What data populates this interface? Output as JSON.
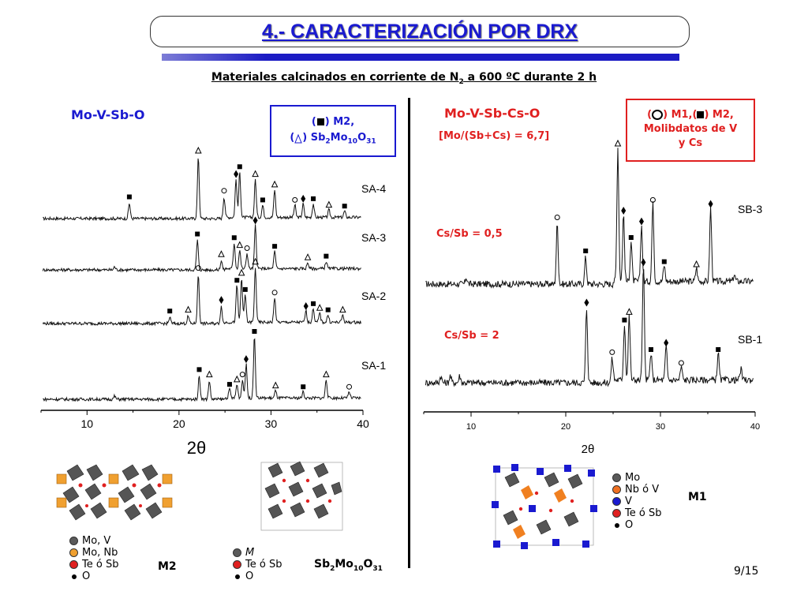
{
  "title": "4.- CARACTERIZACIÓN POR DRX",
  "subtitle_prefix": "Materiales calcinados en corriente de N",
  "subtitle_sub": "2",
  "subtitle_suffix": " a 600 ºC durante 2 h",
  "left_panel": {
    "heading": "Mo-V-Sb-O",
    "legend_m2": ") M2,",
    "legend_sb_open": "(",
    "legend_sb_formula": ") Sb",
    "legend_sb_sub1": "2",
    "legend_sb_mo": "Mo",
    "legend_sb_sub2": "10",
    "legend_sb_o": "O",
    "legend_sb_sub3": "31",
    "legend_m2_open": "("
  },
  "right_panel": {
    "heading": "Mo-V-Sb-Cs-O",
    "ratio": "[Mo/(Sb+Cs) = 6,7]",
    "legend_line1_a": "(",
    "legend_line1_b": ") M1,(",
    "legend_line1_c": ") M2,",
    "legend_line2": "Molibdatos de V",
    "legend_line3": "y Cs",
    "label_05": "Cs/Sb = 0,5",
    "label_2": "Cs/Sb = 2"
  },
  "chart_data": [
    {
      "type": "line",
      "title": "Mo-V-Sb-O",
      "xlabel": "2θ",
      "ylabel": "",
      "xlim": [
        5,
        40
      ],
      "x_ticks": [
        "10",
        "20",
        "30",
        "40"
      ],
      "series": [
        {
          "name": "SA-4",
          "peaks": [
            [
              14.6,
              0.25
            ],
            [
              22.1,
              1.0
            ],
            [
              24.9,
              0.35
            ],
            [
              26.2,
              0.62
            ],
            [
              26.6,
              0.74
            ],
            [
              28.3,
              0.62
            ],
            [
              29.1,
              0.2
            ],
            [
              30.4,
              0.45
            ],
            [
              32.6,
              0.2
            ],
            [
              33.5,
              0.22
            ],
            [
              34.6,
              0.22
            ],
            [
              36.3,
              0.12
            ],
            [
              38.0,
              0.1
            ]
          ]
        },
        {
          "name": "SA-3",
          "peaks": [
            [
              13.0,
              0.05
            ],
            [
              22.0,
              0.48
            ],
            [
              24.6,
              0.15
            ],
            [
              26.0,
              0.42
            ],
            [
              26.6,
              0.3
            ],
            [
              27.4,
              0.25
            ],
            [
              28.3,
              0.7
            ],
            [
              30.4,
              0.28
            ],
            [
              34.0,
              0.1
            ],
            [
              36.0,
              0.12
            ]
          ]
        },
        {
          "name": "SA-2",
          "peaks": [
            [
              19.0,
              0.1
            ],
            [
              21.0,
              0.12
            ],
            [
              22.1,
              0.8
            ],
            [
              24.6,
              0.28
            ],
            [
              26.3,
              0.6
            ],
            [
              26.8,
              0.72
            ],
            [
              27.2,
              0.45
            ],
            [
              28.3,
              0.9
            ],
            [
              30.4,
              0.4
            ],
            [
              33.8,
              0.18
            ],
            [
              34.6,
              0.22
            ],
            [
              35.3,
              0.15
            ],
            [
              36.2,
              0.12
            ],
            [
              37.8,
              0.12
            ]
          ]
        },
        {
          "name": "SA-1",
          "peaks": [
            [
              13.0,
              0.05
            ],
            [
              22.2,
              0.38
            ],
            [
              23.3,
              0.3
            ],
            [
              25.5,
              0.14
            ],
            [
              26.3,
              0.22
            ],
            [
              26.9,
              0.3
            ],
            [
              27.3,
              0.55
            ],
            [
              28.2,
              1.0
            ],
            [
              30.5,
              0.12
            ],
            [
              33.5,
              0.1
            ],
            [
              36.0,
              0.3
            ],
            [
              38.5,
              0.1
            ]
          ]
        }
      ]
    },
    {
      "type": "line",
      "title": "Mo-V-Sb-Cs-O",
      "xlabel": "2θ",
      "ylabel": "",
      "xlim": [
        5,
        40
      ],
      "x_ticks": [
        "10",
        "20",
        "30",
        "40"
      ],
      "series": [
        {
          "name": "SB-3",
          "peaks": [
            [
              9.5,
              0.05
            ],
            [
              19.1,
              0.45
            ],
            [
              22.1,
              0.2
            ],
            [
              25.5,
              1.0
            ],
            [
              26.1,
              0.5
            ],
            [
              26.9,
              0.3
            ],
            [
              28.0,
              0.42
            ],
            [
              29.2,
              0.58
            ],
            [
              30.4,
              0.12
            ],
            [
              33.8,
              0.1
            ],
            [
              35.3,
              0.55
            ],
            [
              37.8,
              0.05
            ]
          ]
        },
        {
          "name": "SB-1",
          "peaks": [
            [
              6.8,
              0.05
            ],
            [
              7.8,
              0.05
            ],
            [
              8.8,
              0.05
            ],
            [
              22.2,
              0.55
            ],
            [
              24.9,
              0.18
            ],
            [
              26.2,
              0.42
            ],
            [
              26.7,
              0.48
            ],
            [
              28.2,
              0.85
            ],
            [
              29.0,
              0.2
            ],
            [
              30.6,
              0.25
            ],
            [
              32.2,
              0.1
            ],
            [
              36.1,
              0.2
            ],
            [
              38.5,
              0.08
            ]
          ]
        }
      ]
    }
  ],
  "structures": {
    "m2": {
      "label": "M2",
      "legend": [
        "Mo, V",
        "Mo, Nb",
        "Te ó Sb",
        "O"
      ],
      "legend_colors": [
        "#5a5a5a",
        "#f0a030",
        "#e02020",
        "#000000"
      ]
    },
    "sb2mo10o31": {
      "label_a": "Sb",
      "label_s1": "2",
      "label_b": "Mo",
      "label_s2": "10",
      "label_c": "O",
      "label_s3": "31",
      "legend": [
        "M",
        "Te ó Sb",
        "O"
      ],
      "legend_colors": [
        "#5a5a5a",
        "#e02020",
        "#000000"
      ]
    },
    "m1": {
      "label": "M1",
      "legend": [
        "Mo",
        "Nb ó V",
        "V",
        "Te ó Sb",
        "O"
      ],
      "legend_colors": [
        "#5a5a5a",
        "#f07020",
        "#1a1ad0",
        "#e02020",
        "#000000"
      ]
    }
  },
  "page_number": "9/15"
}
